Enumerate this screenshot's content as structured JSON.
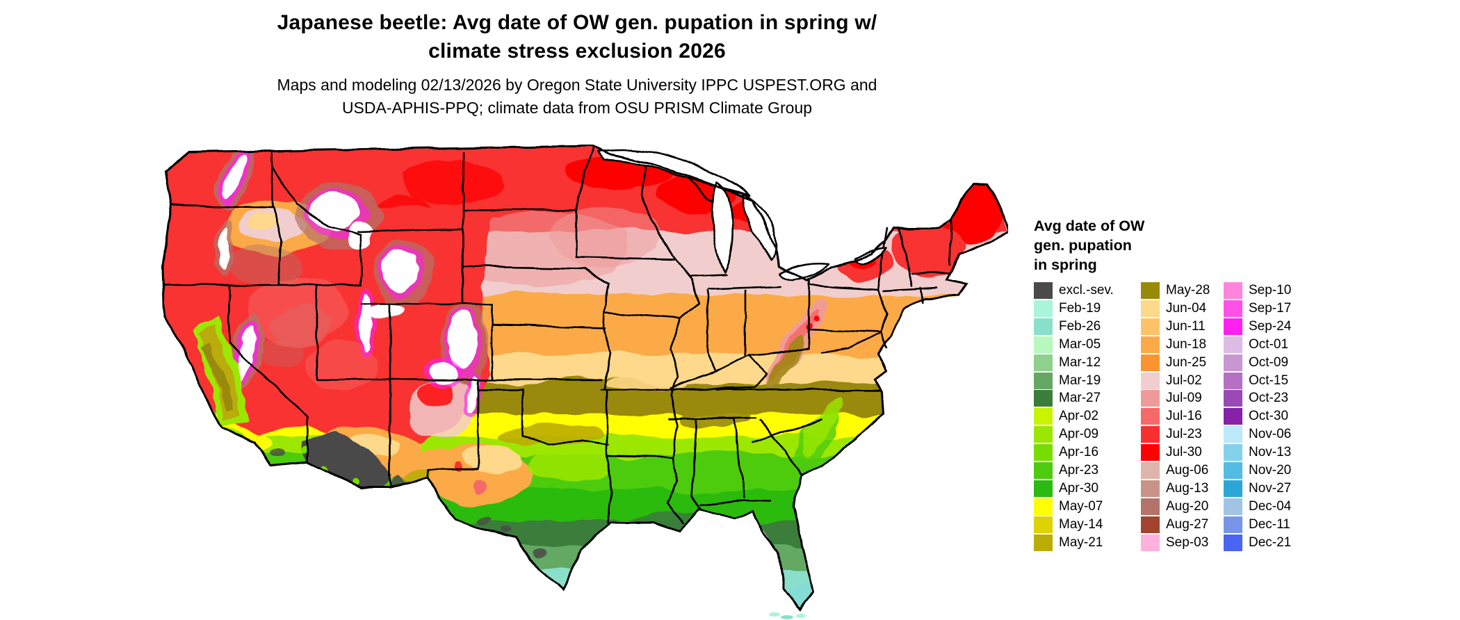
{
  "title": {
    "line1": "Japanese beetle: Avg date of OW gen. pupation in spring w/",
    "line2": "climate stress exclusion 2026"
  },
  "subtitle": {
    "line1": "Maps and modeling 02/13/2026 by Oregon State University IPPC USPEST.ORG and",
    "line2": "USDA-APHIS-PPQ; climate data from OSU PRISM Climate Group"
  },
  "legend": {
    "title_lines": [
      "Avg date of OW",
      "gen. pupation",
      "in spring"
    ],
    "columns": [
      {
        "entries": [
          {
            "label": "excl.-sev.",
            "color": "#4a4a4a"
          },
          {
            "label": "Feb-19",
            "color": "#a9f5d9"
          },
          {
            "label": "Feb-26",
            "color": "#8adfca"
          },
          {
            "label": "Mar-05",
            "color": "#b6f8bd"
          },
          {
            "label": "Mar-12",
            "color": "#8ed08e"
          },
          {
            "label": "Mar-19",
            "color": "#63a863"
          },
          {
            "label": "Mar-27",
            "color": "#3b7d3b"
          },
          {
            "label": "Apr-02",
            "color": "#c9f400"
          },
          {
            "label": "Apr-09",
            "color": "#9ce700"
          },
          {
            "label": "Apr-16",
            "color": "#77dd00"
          },
          {
            "label": "Apr-23",
            "color": "#4ecb0e"
          },
          {
            "label": "Apr-30",
            "color": "#2abb10"
          },
          {
            "label": "May-07",
            "color": "#ffff00"
          },
          {
            "label": "May-14",
            "color": "#dcd300"
          },
          {
            "label": "May-21",
            "color": "#bbac07"
          }
        ]
      },
      {
        "entries": [
          {
            "label": "May-28",
            "color": "#998908"
          },
          {
            "label": "Jun-04",
            "color": "#fed88b"
          },
          {
            "label": "Jun-11",
            "color": "#fec369"
          },
          {
            "label": "Jun-18",
            "color": "#fbaa47"
          },
          {
            "label": "Jun-25",
            "color": "#fb942e"
          },
          {
            "label": "Jul-02",
            "color": "#f1cdcd"
          },
          {
            "label": "Jul-09",
            "color": "#ef9a9a"
          },
          {
            "label": "Jul-16",
            "color": "#f66969"
          },
          {
            "label": "Jul-23",
            "color": "#f93030"
          },
          {
            "label": "Jul-30",
            "color": "#fe0000"
          },
          {
            "label": "Aug-06",
            "color": "#dfb4ab"
          },
          {
            "label": "Aug-13",
            "color": "#c89389"
          },
          {
            "label": "Aug-20",
            "color": "#b4736a"
          },
          {
            "label": "Aug-27",
            "color": "#a1432e"
          },
          {
            "label": "Sep-03",
            "color": "#ffb1dc"
          }
        ]
      },
      {
        "entries": [
          {
            "label": "Sep-10",
            "color": "#ff84dc"
          },
          {
            "label": "Sep-17",
            "color": "#ff50e8"
          },
          {
            "label": "Sep-24",
            "color": "#fe20f0"
          },
          {
            "label": "Oct-01",
            "color": "#dcbbe4"
          },
          {
            "label": "Oct-09",
            "color": "#c897d1"
          },
          {
            "label": "Oct-15",
            "color": "#b471c4"
          },
          {
            "label": "Oct-23",
            "color": "#9a4ab4"
          },
          {
            "label": "Oct-30",
            "color": "#8721a7"
          },
          {
            "label": "Nov-06",
            "color": "#bbe9f9"
          },
          {
            "label": "Nov-13",
            "color": "#84d1ed"
          },
          {
            "label": "Nov-20",
            "color": "#54bbe3"
          },
          {
            "label": "Nov-27",
            "color": "#2aa7d7"
          },
          {
            "label": "Dec-04",
            "color": "#a1c4e4"
          },
          {
            "label": "Dec-11",
            "color": "#7995e9"
          },
          {
            "label": "Dec-21",
            "color": "#4a65f1"
          }
        ]
      }
    ]
  }
}
